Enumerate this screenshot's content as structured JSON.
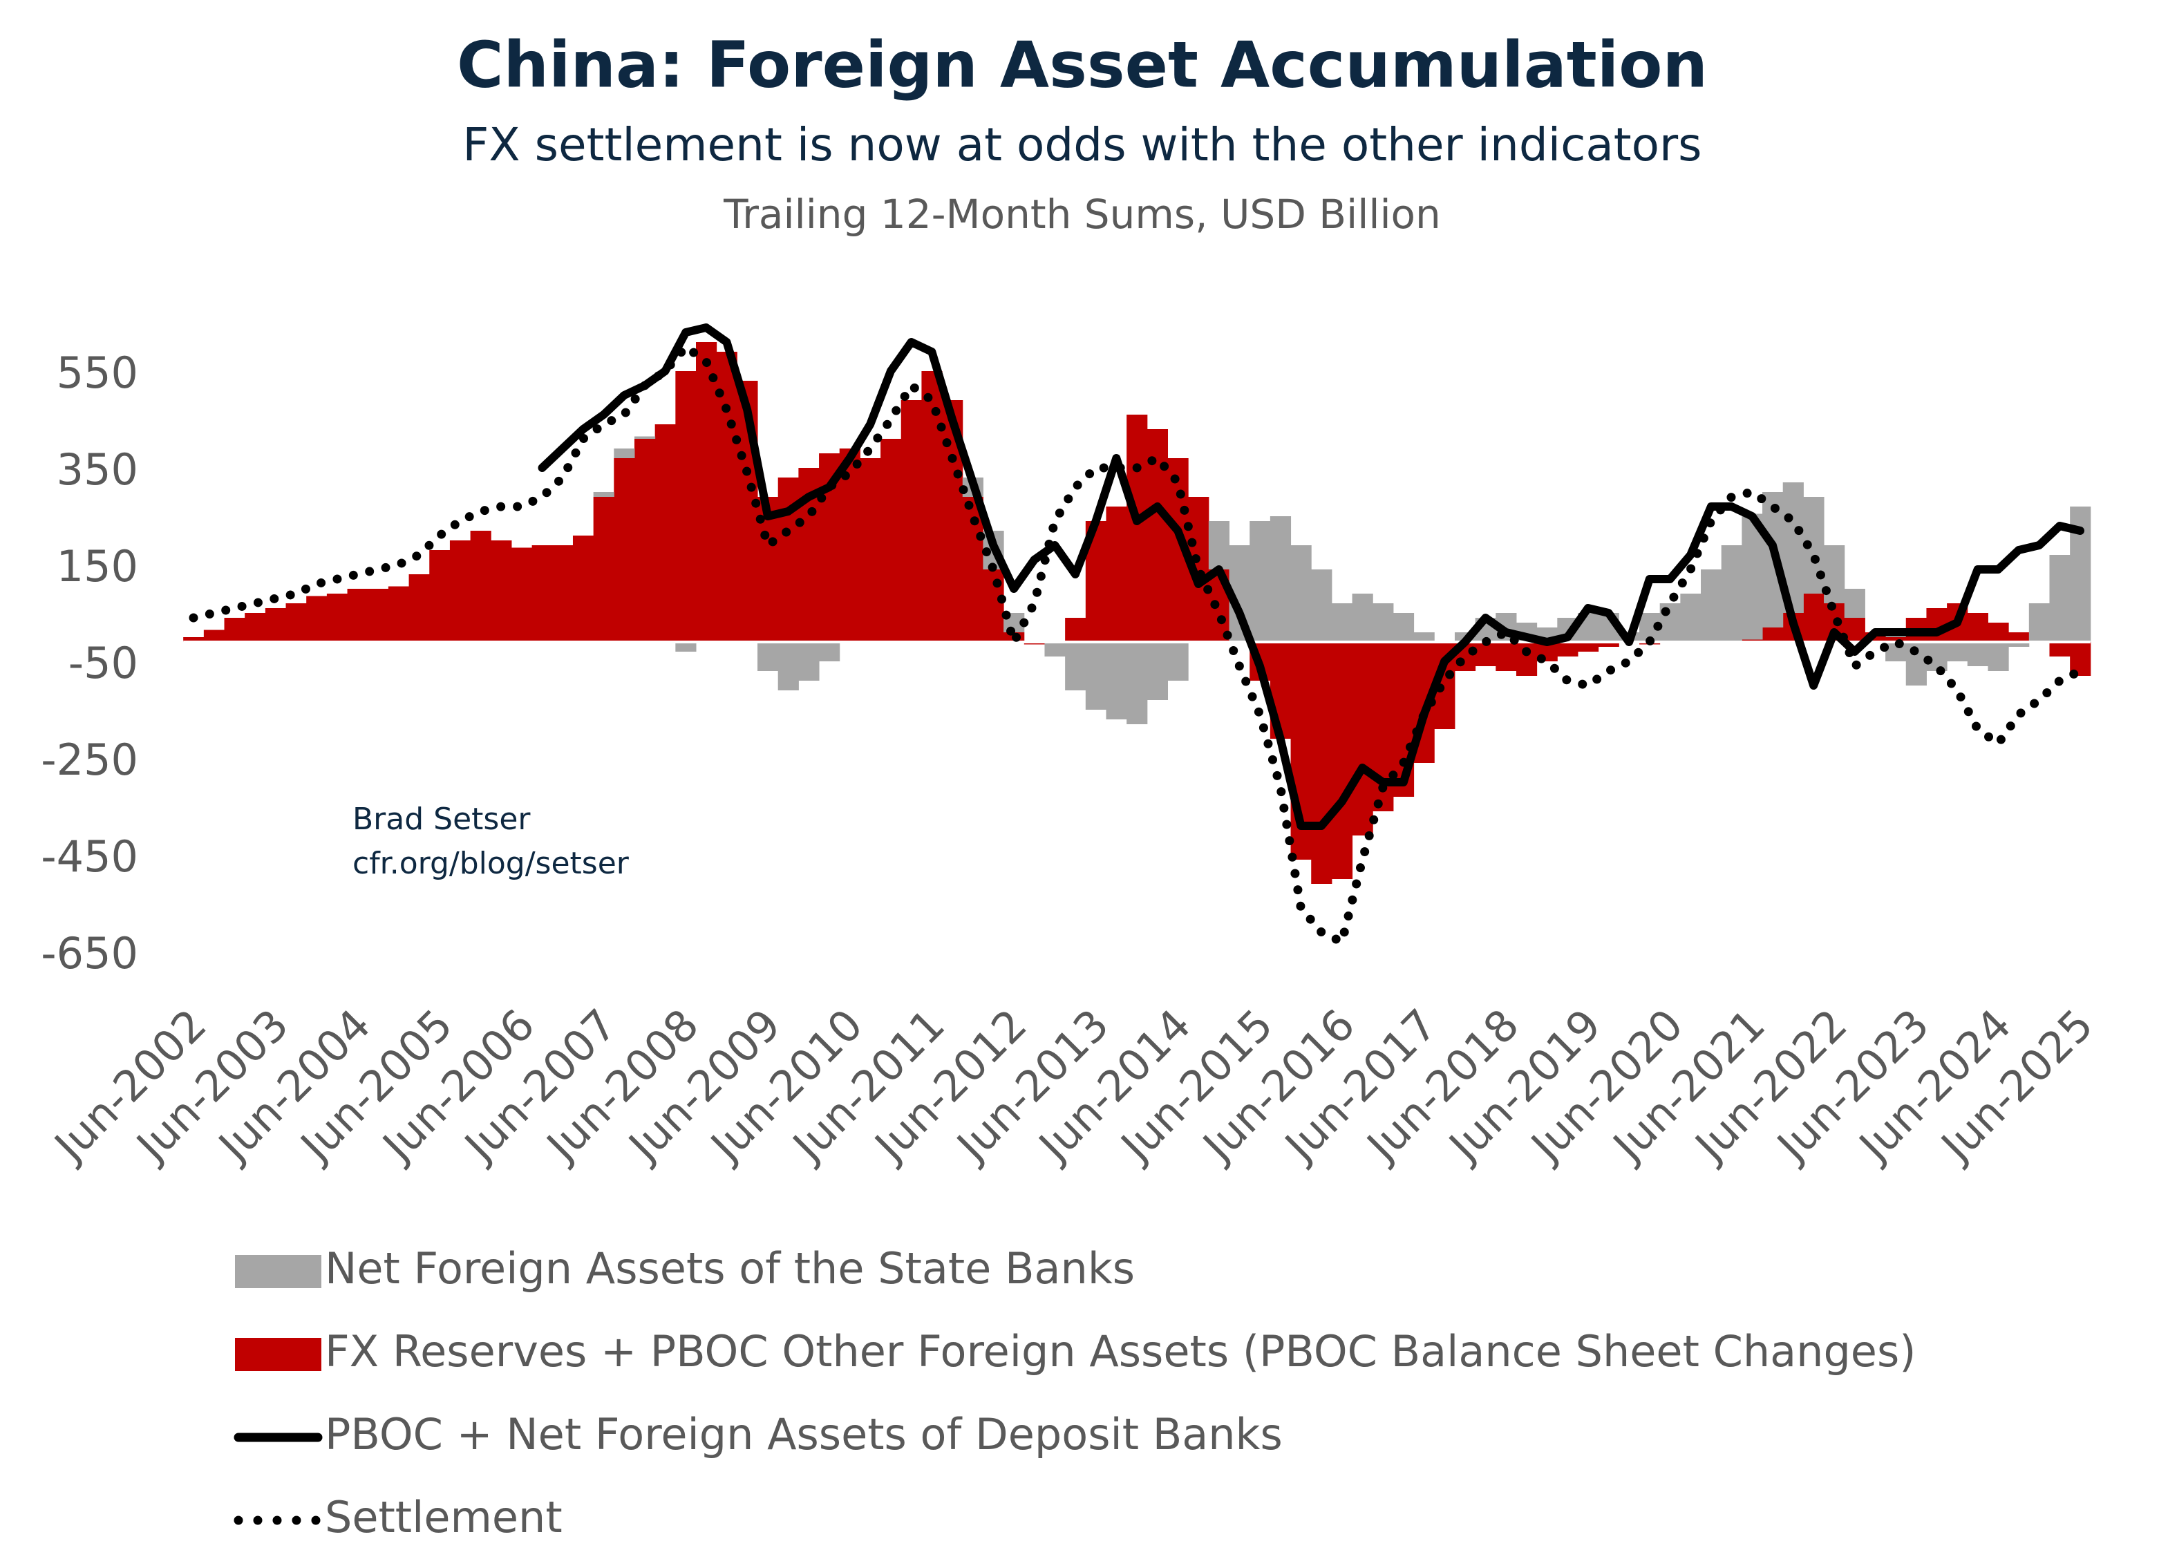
{
  "chart_data": {
    "type": "combo",
    "title": "China: Foreign Asset Accumulation",
    "subtitle": "FX settlement is now at odds with the other indicators",
    "units": "Trailing 12-Month Sums, USD Billion",
    "annotations": [
      "Brad Setser",
      "cfr.org/blog/setser"
    ],
    "categories": [
      "Jun-2002",
      null,
      null,
      null,
      "Jun-2003",
      null,
      null,
      null,
      "Jun-2004",
      null,
      null,
      null,
      "Jun-2005",
      null,
      null,
      null,
      "Jun-2006",
      null,
      null,
      null,
      "Jun-2007",
      null,
      null,
      null,
      "Jun-2008",
      null,
      null,
      null,
      "Jun-2009",
      null,
      null,
      null,
      "Jun-2010",
      null,
      null,
      null,
      "Jun-2011",
      null,
      null,
      null,
      "Jun-2012",
      null,
      null,
      null,
      "Jun-2013",
      null,
      null,
      null,
      "Jun-2014",
      null,
      null,
      null,
      "Jun-2015",
      null,
      null,
      null,
      "Jun-2016",
      null,
      null,
      null,
      "Jun-2017",
      null,
      null,
      null,
      "Jun-2018",
      null,
      null,
      null,
      "Jun-2019",
      null,
      null,
      null,
      "Jun-2020",
      null,
      null,
      null,
      "Jun-2021",
      null,
      null,
      null,
      "Jun-2022",
      null,
      null,
      null,
      "Jun-2023",
      null,
      null,
      null,
      "Jun-2024",
      null,
      null,
      null,
      "Jun-2025"
    ],
    "ylim": [
      -700,
      700
    ],
    "yticks": [
      -650,
      -450,
      -250,
      -50,
      150,
      350,
      550
    ],
    "series": [
      {
        "name": "Net Foreign Assets of the State Banks",
        "kind": "bar",
        "color": "#a6a6a6",
        "values": [
          0,
          0,
          0,
          0,
          0,
          0,
          0,
          0,
          0,
          0,
          0,
          0,
          0,
          0,
          0,
          0,
          0,
          0,
          0,
          0,
          10,
          20,
          5,
          0,
          -20,
          0,
          0,
          0,
          -60,
          -100,
          -80,
          -40,
          0,
          0,
          0,
          0,
          0,
          0,
          40,
          80,
          40,
          0,
          -30,
          -100,
          -140,
          -160,
          -170,
          -120,
          -80,
          0,
          100,
          200,
          250,
          260,
          200,
          150,
          80,
          100,
          80,
          60,
          20,
          0,
          20,
          50,
          60,
          40,
          30,
          50,
          60,
          60,
          20,
          60,
          80,
          100,
          150,
          200,
          260,
          280,
          270,
          200,
          120,
          60,
          0,
          -40,
          -90,
          -60,
          -40,
          -50,
          -60,
          -10,
          80,
          180,
          280
        ]
      },
      {
        "name": "FX Reserves + PBOC Other Foreign Assets (PBOC Balance Sheet Changes)",
        "kind": "bar",
        "color": "#c00000",
        "values": [
          10,
          25,
          50,
          60,
          70,
          80,
          95,
          100,
          110,
          110,
          115,
          140,
          190,
          210,
          230,
          210,
          195,
          200,
          200,
          220,
          300,
          380,
          420,
          450,
          560,
          620,
          600,
          540,
          300,
          340,
          360,
          390,
          400,
          380,
          420,
          500,
          560,
          500,
          300,
          150,
          20,
          -5,
          0,
          50,
          250,
          280,
          470,
          440,
          380,
          300,
          150,
          0,
          -80,
          -200,
          -450,
          -500,
          -490,
          -400,
          -350,
          -320,
          -250,
          -180,
          -60,
          -50,
          -60,
          -70,
          -40,
          -30,
          -20,
          -10,
          0,
          -5,
          0,
          0,
          0,
          0,
          5,
          30,
          60,
          100,
          80,
          50,
          20,
          10,
          50,
          70,
          80,
          60,
          40,
          20,
          0,
          -30,
          -70
        ]
      },
      {
        "name": "PBOC + Net Foreign Assets of Deposit Banks",
        "kind": "line",
        "style": "solid",
        "color": "#000000",
        "values": [
          null,
          null,
          null,
          null,
          null,
          null,
          null,
          null,
          null,
          null,
          null,
          null,
          null,
          null,
          null,
          null,
          null,
          360,
          400,
          440,
          470,
          510,
          530,
          560,
          640,
          650,
          620,
          480,
          260,
          270,
          300,
          320,
          380,
          450,
          560,
          620,
          600,
          460,
          330,
          200,
          110,
          170,
          200,
          140,
          250,
          380,
          250,
          280,
          230,
          120,
          150,
          60,
          -50,
          -200,
          -380,
          -380,
          -330,
          -260,
          -290,
          -290,
          -150,
          -40,
          0,
          50,
          20,
          10,
          0,
          10,
          70,
          60,
          0,
          130,
          130,
          180,
          280,
          280,
          260,
          200,
          40,
          -90,
          20,
          -20,
          20,
          20,
          20,
          20,
          40,
          150,
          150,
          190,
          200,
          240,
          230
        ]
      },
      {
        "name": "Settlement",
        "kind": "line",
        "style": "dotted",
        "color": "#000000",
        "values": [
          50,
          60,
          70,
          80,
          90,
          100,
          120,
          130,
          140,
          150,
          160,
          180,
          220,
          250,
          270,
          280,
          280,
          300,
          340,
          420,
          450,
          470,
          530,
          560,
          610,
          580,
          480,
          350,
          200,
          230,
          260,
          320,
          350,
          400,
          460,
          530,
          500,
          380,
          260,
          150,
          0,
          80,
          250,
          320,
          360,
          360,
          360,
          380,
          330,
          150,
          60,
          -50,
          -150,
          -300,
          -550,
          -600,
          -620,
          -450,
          -300,
          -250,
          -150,
          -80,
          -30,
          0,
          20,
          -20,
          -40,
          -80,
          -90,
          -60,
          -40,
          0,
          80,
          150,
          250,
          300,
          310,
          280,
          250,
          180,
          60,
          -50,
          -20,
          0,
          -20,
          -50,
          -100,
          -180,
          -210,
          -150,
          -120,
          -80,
          -60
        ]
      }
    ]
  }
}
